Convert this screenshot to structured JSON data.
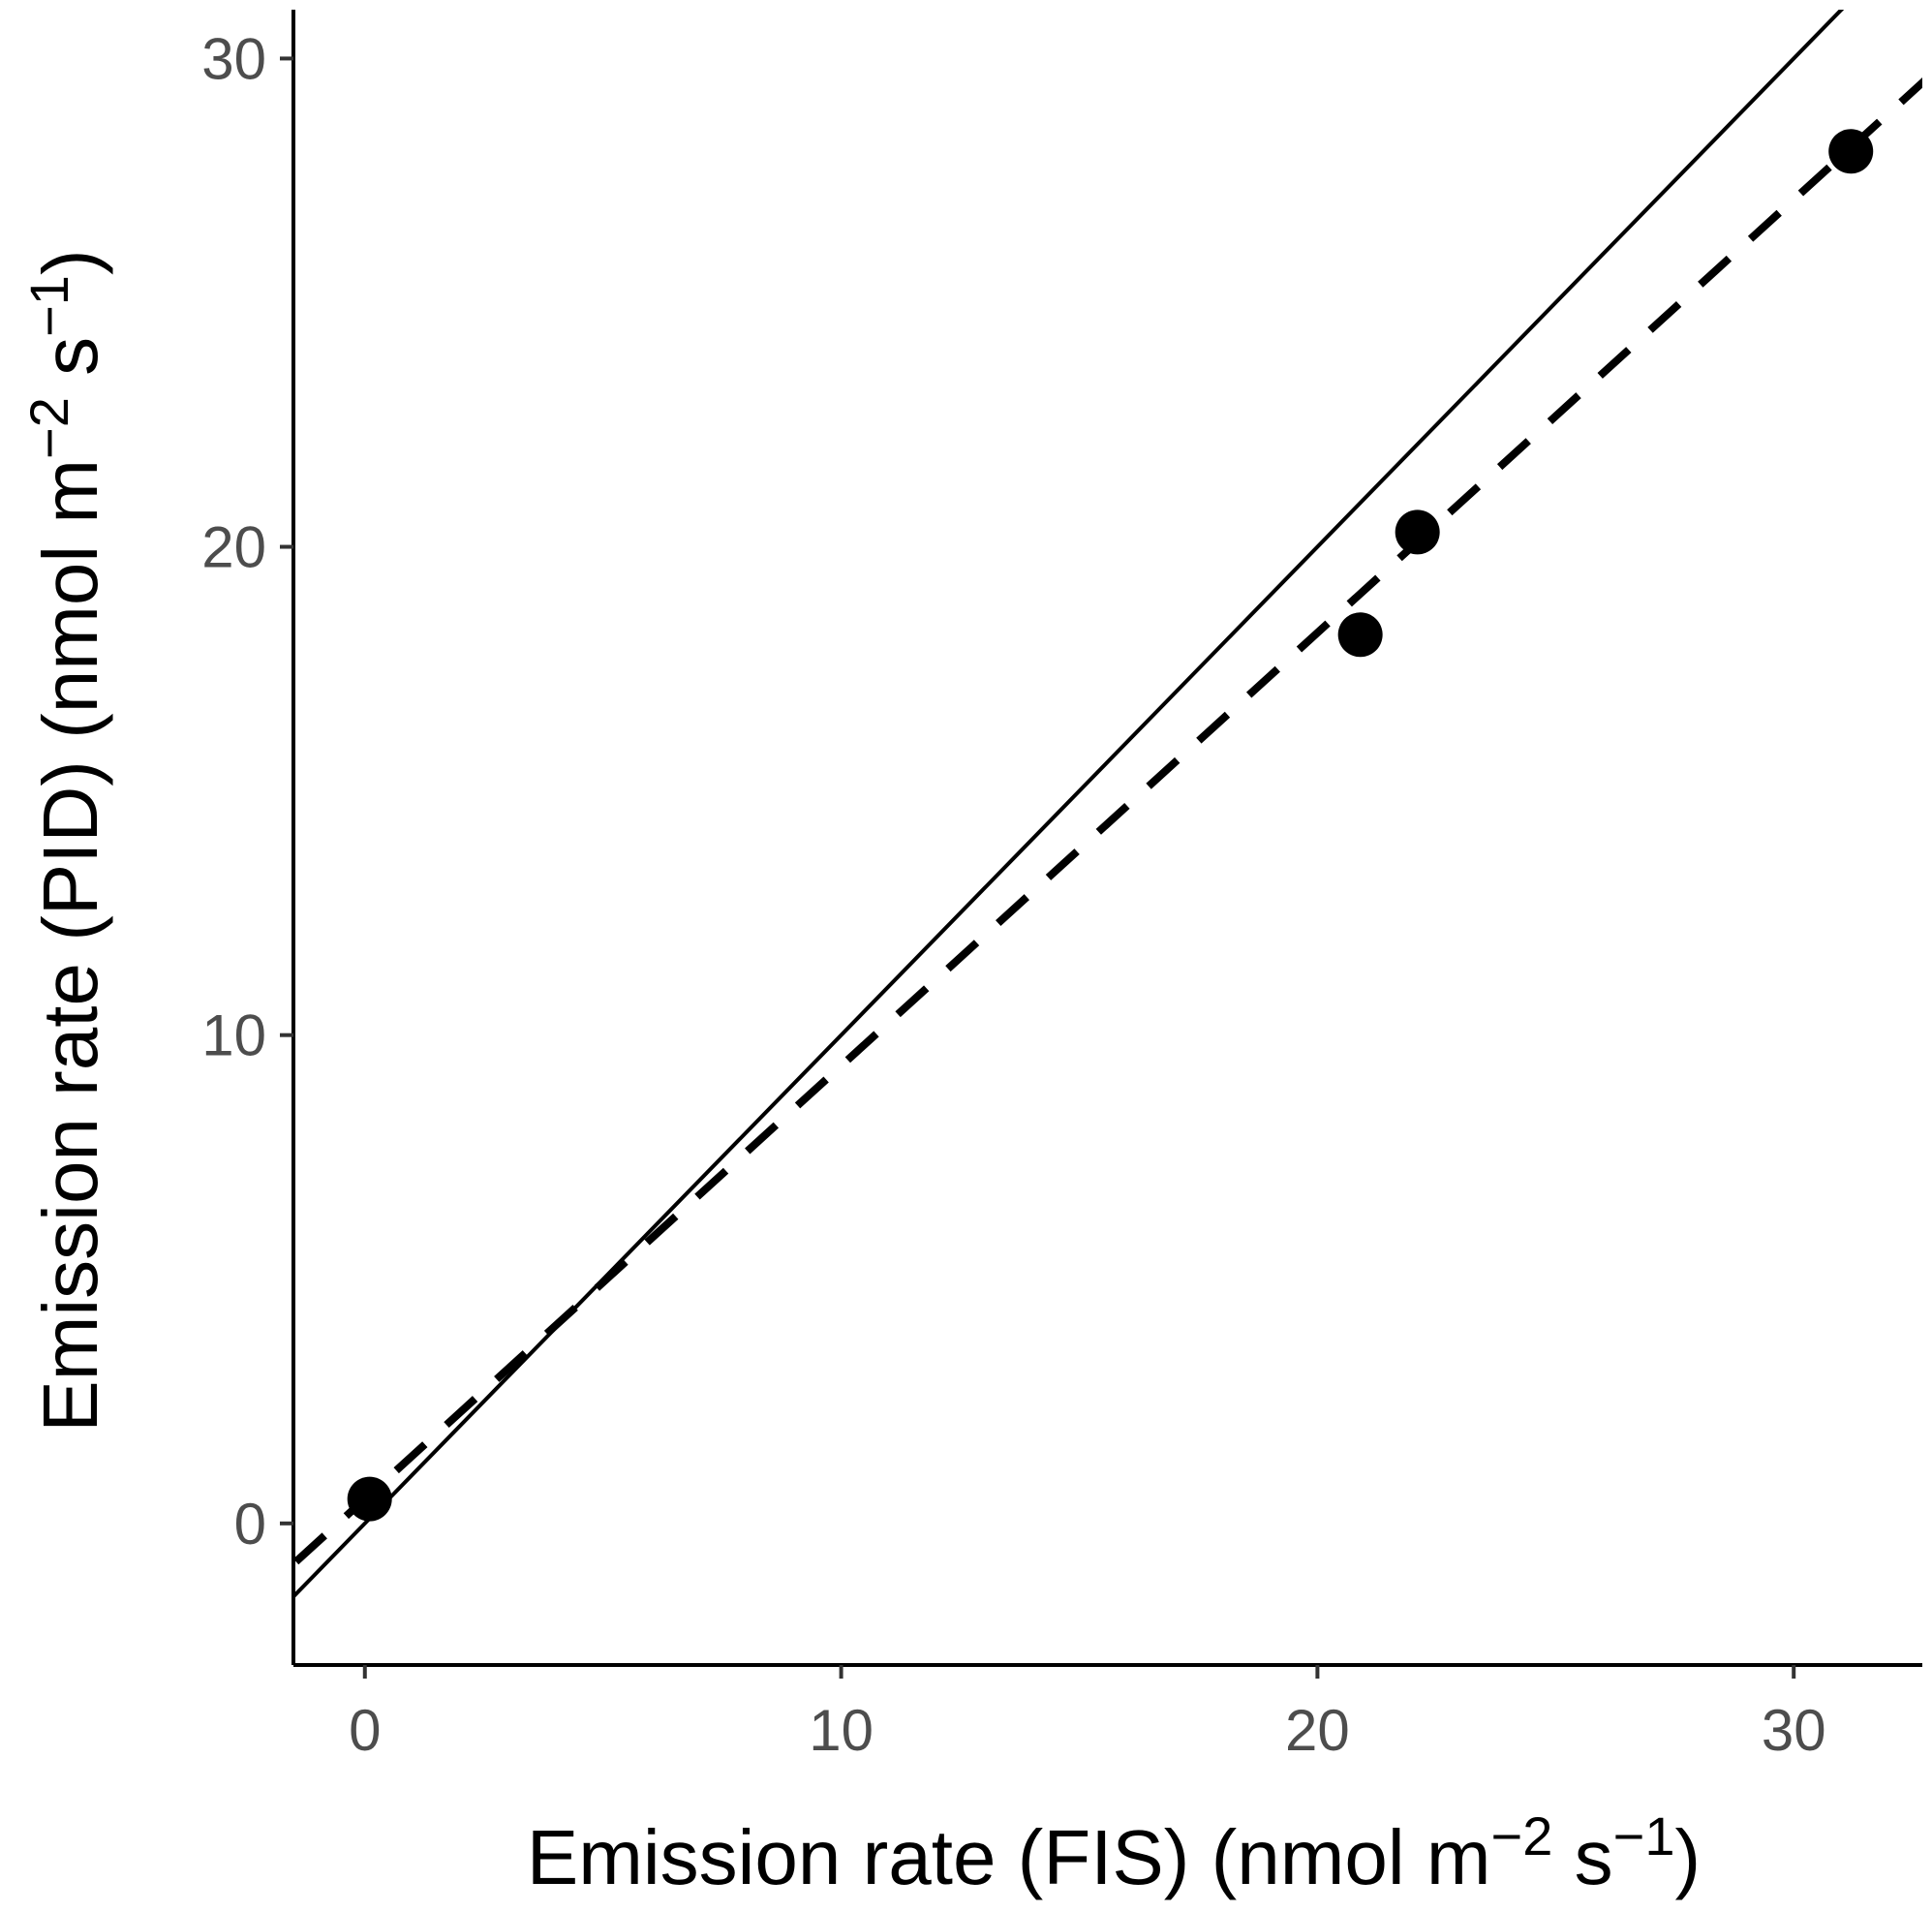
{
  "chart_data": {
    "type": "scatter",
    "title": "",
    "xlabel": "Emission rate (FIS) (nmol m",
    "xlabel_sup1": "−2",
    "xlabel_mid": " s",
    "xlabel_sup2": "−1",
    "xlabel_end": ")",
    "ylabel": "Emission rate (PID) (nmol m",
    "ylabel_sup1": "−2",
    "ylabel_mid": " s",
    "ylabel_sup2": "−1",
    "ylabel_end": ")",
    "xlim": [
      -1.5,
      32.7
    ],
    "ylim": [
      -2.9,
      31
    ],
    "xticks": [
      0,
      10,
      20,
      30
    ],
    "yticks": [
      0,
      10,
      20,
      30
    ],
    "grid": false,
    "points": [
      {
        "x": 0.1,
        "y": 0.5
      },
      {
        "x": 20.9,
        "y": 18.2
      },
      {
        "x": 22.1,
        "y": 20.3
      },
      {
        "x": 31.2,
        "y": 28.1
      }
    ],
    "lines": [
      {
        "style": "solid",
        "slope": 1.0,
        "intercept": 0.0
      },
      {
        "style": "dashed",
        "slope": 0.887,
        "intercept": 0.5
      }
    ],
    "colors": {
      "points": "#000000",
      "lines": "#000000",
      "tick_labels": "#4d4d4d"
    }
  }
}
